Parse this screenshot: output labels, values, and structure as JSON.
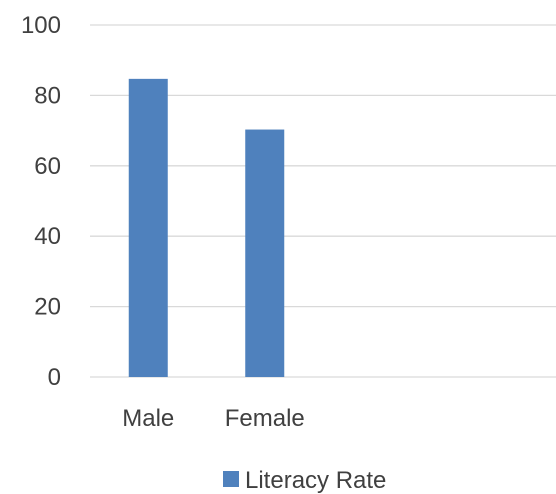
{
  "chart_data": {
    "type": "bar",
    "categories": [
      "Male",
      "Female"
    ],
    "series": [
      {
        "name": "Literacy Rate",
        "values": [
          84.7,
          70.3
        ]
      }
    ],
    "title": "",
    "xlabel": "",
    "ylabel": "",
    "ylim": [
      0,
      100
    ],
    "yticks": [
      0,
      20,
      40,
      60,
      80,
      100
    ],
    "grid": true,
    "legend": "bottom",
    "category_slots": 4
  },
  "colors": {
    "bar": "#4f81bd",
    "grid": "#d9d9d9",
    "axis": "#d9d9d9",
    "text": "#404040"
  }
}
